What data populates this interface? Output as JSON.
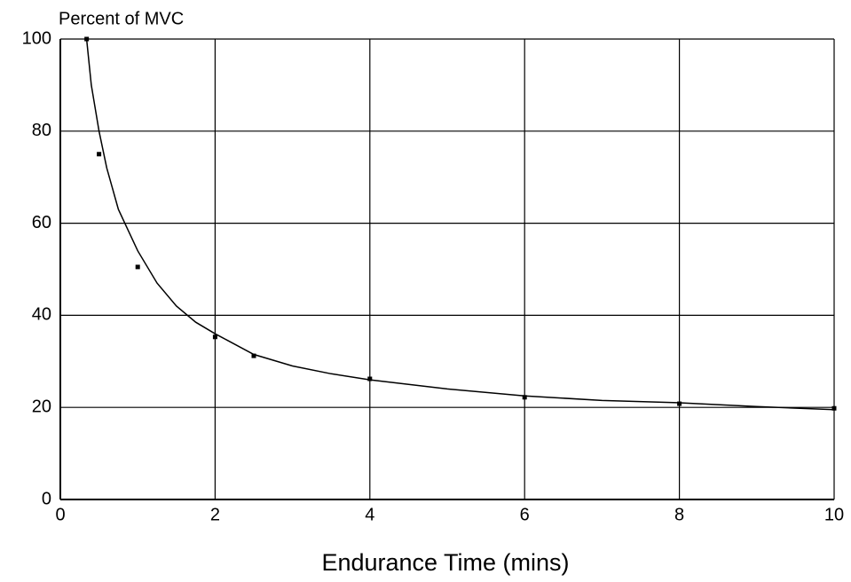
{
  "chart_data": {
    "type": "scatter",
    "y_label": "Percent of MVC",
    "x_label": "Endurance Time (mins)",
    "xlim": [
      0,
      10
    ],
    "ylim": [
      0,
      100
    ],
    "xticks": [
      0,
      2,
      4,
      6,
      8,
      10
    ],
    "yticks": [
      0,
      20,
      40,
      60,
      80,
      100
    ],
    "grid": true,
    "series": [
      {
        "mode": "markers",
        "color": "#000000",
        "x": [
          0.34,
          0.5,
          1.0,
          2.0,
          2.5,
          4.0,
          6.0,
          8.0,
          10.0
        ],
        "values": [
          100,
          75,
          50.5,
          35.3,
          31.2,
          26.2,
          22.2,
          20.8,
          19.8
        ]
      },
      {
        "mode": "line",
        "color": "#000000",
        "x": [
          0.34,
          0.4,
          0.5,
          0.6,
          0.75,
          1,
          1.25,
          1.5,
          1.75,
          2,
          2.5,
          3,
          3.5,
          4,
          5,
          6,
          7,
          8,
          9,
          10
        ],
        "values": [
          100,
          90,
          80,
          72,
          63,
          54,
          47,
          42,
          38.5,
          36,
          31.5,
          29,
          27.3,
          26,
          24,
          22.5,
          21.5,
          21,
          20.2,
          19.5
        ]
      }
    ]
  }
}
